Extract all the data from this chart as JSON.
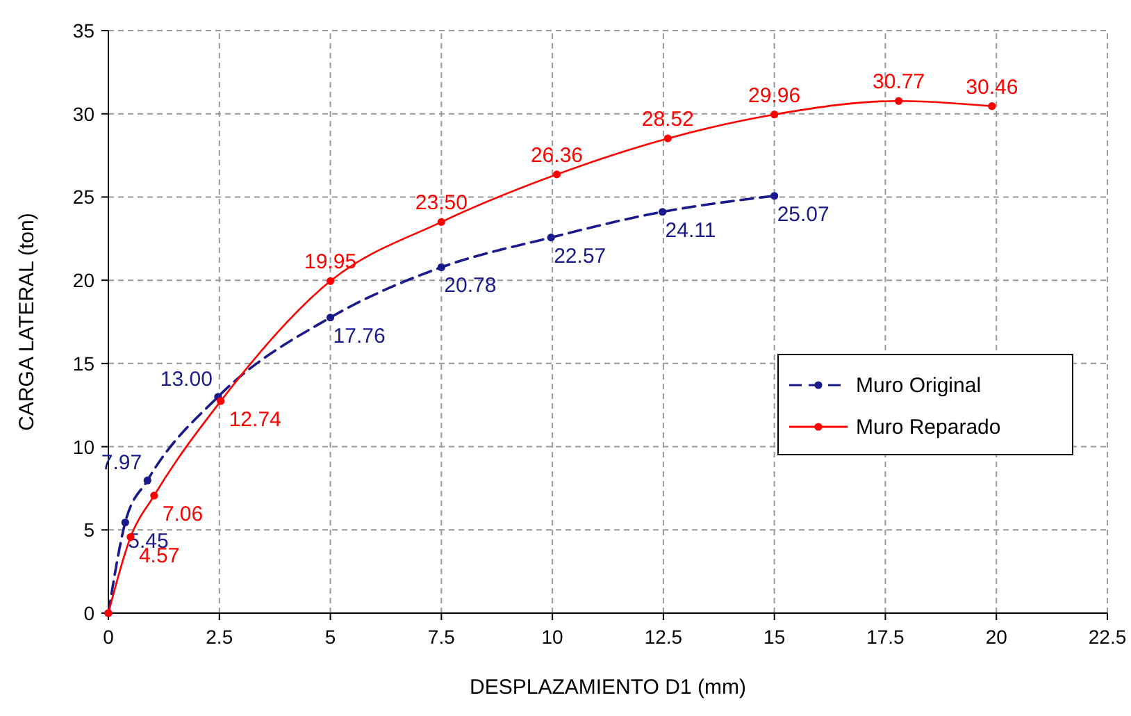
{
  "chart_data": {
    "type": "line",
    "xlabel": "DESPLAZAMIENTO D1 (mm)",
    "ylabel": "CARGA LATERAL (ton)",
    "xlim": [
      0,
      22.5
    ],
    "xticks": [
      0,
      2.5,
      5,
      7.5,
      10,
      12.5,
      15,
      17.5,
      20,
      22.5
    ],
    "ylim": [
      0,
      35
    ],
    "yticks": [
      0,
      5,
      10,
      15,
      20,
      25,
      30,
      35
    ],
    "grid": true,
    "legend": "right",
    "marker": "circle",
    "series": [
      {
        "name": "Muro Original",
        "color": "#1a1a8c",
        "line_style": "dashed",
        "x": [
          0,
          0.38,
          0.88,
          2.47,
          5.0,
          7.5,
          9.97,
          12.48,
          15.0
        ],
        "values": [
          0,
          5.45,
          7.97,
          13.0,
          17.76,
          20.78,
          22.57,
          24.11,
          25.07
        ],
        "value_labels": [
          null,
          "5.45",
          "7.97",
          "13.00",
          "17.76",
          "20.78",
          "22.57",
          "24.11",
          "25.07"
        ]
      },
      {
        "name": "Muro Reparado",
        "color": "#ff0000",
        "line_style": "solid",
        "x": [
          0,
          0.5,
          1.03,
          2.53,
          5.0,
          7.5,
          10.1,
          12.6,
          15.0,
          17.8,
          19.9
        ],
        "values": [
          0,
          4.57,
          7.06,
          12.74,
          19.95,
          23.5,
          26.36,
          28.52,
          29.96,
          30.77,
          30.46
        ],
        "value_labels": [
          null,
          "4.57",
          "7.06",
          "12.74",
          "19.95",
          "23.50",
          "26.36",
          "28.52",
          "29.96",
          "30.77",
          "30.46"
        ]
      }
    ]
  }
}
